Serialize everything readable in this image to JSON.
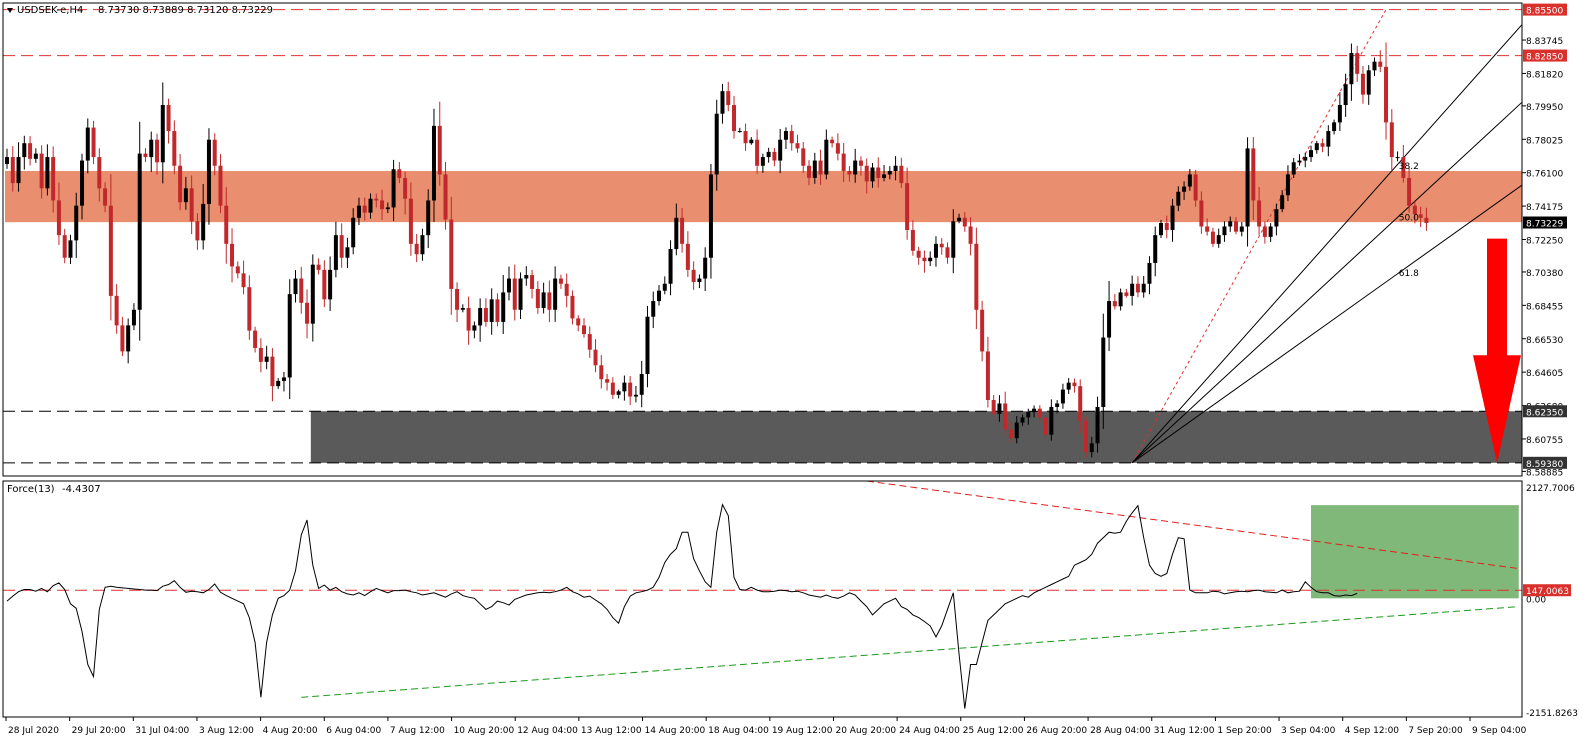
{
  "header": {
    "symbol": "USDSEK-e,H4",
    "ohlc": "8.73730 8.73889 8.73120 8.73229"
  },
  "indicator_header": {
    "name": "Force(13)",
    "value": "-4.4307"
  },
  "colors": {
    "bull": "#000000",
    "bear": "#c0282b",
    "resistance_zone": "#e98f70",
    "support_zone": "#5a5a5a",
    "force_zone": "#7fb878",
    "level_line": "#e03030",
    "arrow": "#ff0000"
  },
  "chart_data": [
    {
      "type": "candlestick",
      "title": "USDSEK-e,H4",
      "ylim": [
        8.5862,
        8.8588
      ],
      "y_ticks": [
        "8.83745",
        "8.81820",
        "8.79950",
        "8.78025",
        "8.76100",
        "8.74175",
        "8.72250",
        "8.70380",
        "8.68455",
        "8.66530",
        "8.64605",
        "8.62680",
        "8.60755",
        "8.58885"
      ],
      "price_labels": [
        {
          "label": "8.85500",
          "value": 8.855,
          "style": "red"
        },
        {
          "label": "8.82850",
          "value": 8.8285,
          "style": "red"
        },
        {
          "label": "8.73229",
          "value": 8.73229,
          "style": "current"
        },
        {
          "label": "8.62350",
          "value": 8.6235,
          "style": "dark"
        },
        {
          "label": "8.59380",
          "value": 8.5938,
          "style": "dark"
        }
      ],
      "horizontal_levels": [
        {
          "value": 8.855,
          "color": "red",
          "dash": true
        },
        {
          "value": 8.8285,
          "color": "red",
          "dash": true
        },
        {
          "value": 8.6235,
          "color": "black",
          "dash": true
        },
        {
          "value": 8.5938,
          "color": "black",
          "dash": true
        }
      ],
      "zones": [
        {
          "name": "resistance",
          "from": 8.7325,
          "to": 8.762,
          "start_candle": 0
        },
        {
          "name": "support",
          "from": 8.5938,
          "to": 8.6235,
          "start_candle": 53
        }
      ],
      "fibonacci": {
        "anchor_candle": 195,
        "anchor_price": 8.5938,
        "peak_candle": 239,
        "peak_price": 8.855,
        "levels": [
          {
            "label": "38.2",
            "value": 8.762,
            "candle": 240
          },
          {
            "label": "50.0",
            "value": 8.7322,
            "candle": 240
          },
          {
            "label": "61.8",
            "value": 8.7004,
            "candle": 240
          }
        ]
      },
      "arrow": {
        "direction": "down",
        "from": 8.723,
        "to": 8.5938
      },
      "x_labels": [
        "28 Jul 2020",
        "29 Jul 20:00",
        "31 Jul 04:00",
        "3 Aug 12:00",
        "4 Aug 20:00",
        "6 Aug 04:00",
        "7 Aug 12:00",
        "10 Aug 20:00",
        "12 Aug 04:00",
        "13 Aug 12:00",
        "14 Aug 20:00",
        "18 Aug 04:00",
        "19 Aug 12:00",
        "20 Aug 20:00",
        "24 Aug 04:00",
        "25 Aug 12:00",
        "26 Aug 20:00",
        "28 Aug 04:00",
        "31 Aug 12:00",
        "1 Sep 20:00",
        "3 Sep 04:00",
        "4 Sep 12:00",
        "7 Sep 20:00",
        "9 Sep 04:00"
      ],
      "closes": [
        8.77,
        8.755,
        8.77,
        8.778,
        8.769,
        8.772,
        8.752,
        8.77,
        8.745,
        8.725,
        8.712,
        8.722,
        8.742,
        8.768,
        8.787,
        8.77,
        8.752,
        8.742,
        8.69,
        8.673,
        8.658,
        8.673,
        8.682,
        8.772,
        8.77,
        8.78,
        8.767,
        8.8,
        8.785,
        8.765,
        8.744,
        8.752,
        8.733,
        8.722,
        8.743,
        8.78,
        8.765,
        8.742,
        8.72,
        8.707,
        8.703,
        8.695,
        8.67,
        8.66,
        8.652,
        8.655,
        8.638,
        8.641,
        8.643,
        8.691,
        8.7,
        8.686,
        8.674,
        8.708,
        8.705,
        8.688,
        8.705,
        8.725,
        8.712,
        8.718,
        8.735,
        8.742,
        8.738,
        8.746,
        8.745,
        8.74,
        8.741,
        8.763,
        8.758,
        8.746,
        8.72,
        8.714,
        8.725,
        8.745,
        8.788,
        8.76,
        8.734,
        8.694,
        8.682,
        8.683,
        8.67,
        8.673,
        8.683,
        8.675,
        8.688,
        8.675,
        8.692,
        8.7,
        8.682,
        8.7,
        8.702,
        8.694,
        8.683,
        8.692,
        8.682,
        8.7,
        8.697,
        8.69,
        8.677,
        8.673,
        8.668,
        8.659,
        8.65,
        8.642,
        8.64,
        8.633,
        8.635,
        8.64,
        8.632,
        8.633,
        8.645,
        8.678,
        8.687,
        8.693,
        8.697,
        8.717,
        8.735,
        8.72,
        8.705,
        8.698,
        8.7,
        8.712,
        8.76,
        8.795,
        8.808,
        8.8,
        8.785,
        8.785,
        8.778,
        8.78,
        8.765,
        8.77,
        8.773,
        8.768,
        8.78,
        8.785,
        8.778,
        8.775,
        8.765,
        8.758,
        8.768,
        8.76,
        8.78,
        8.778,
        8.772,
        8.762,
        8.76,
        8.768,
        8.765,
        8.756,
        8.764,
        8.758,
        8.76,
        8.762,
        8.765,
        8.755,
        8.728,
        8.716,
        8.712,
        8.71,
        8.712,
        8.72,
        8.718,
        8.712,
        8.733,
        8.735,
        8.73,
        8.72,
        8.682,
        8.658,
        8.63,
        8.622,
        8.628,
        8.613,
        8.608,
        8.617,
        8.62,
        8.623,
        8.625,
        8.62,
        8.61,
        8.626,
        8.628,
        8.636,
        8.64,
        8.638,
        8.618,
        8.6,
        8.605,
        8.626,
        8.666,
        8.687,
        8.684,
        8.692,
        8.69,
        8.697,
        8.692,
        8.697,
        8.709,
        8.725,
        8.732,
        8.728,
        8.742,
        8.75,
        8.753,
        8.76,
        8.745,
        8.73,
        8.727,
        8.72,
        8.725,
        8.73,
        8.733,
        8.727,
        8.73,
        8.775,
        8.745,
        8.73,
        8.724,
        8.73,
        8.74,
        8.748,
        8.76,
        8.767,
        8.768,
        8.77,
        8.774,
        8.778,
        8.776,
        8.785,
        8.79,
        8.8,
        8.812,
        8.83,
        8.818,
        8.806,
        8.82,
        8.825,
        8.822,
        8.79,
        8.77,
        8.77,
        8.758,
        8.742,
        8.737,
        8.735,
        8.732
      ]
    },
    {
      "type": "line",
      "title": "Force(13) -4.4307",
      "ylim": [
        -2151.8263,
        2127.7006
      ],
      "y_ticks": [
        "2127.7006",
        "0.00",
        "-2151.8263"
      ],
      "price_labels": [
        {
          "label": "147.0063",
          "value": 147.0063
        }
      ],
      "level": 147.0063,
      "trendlines": [
        {
          "color": "red",
          "from": {
            "candle": 149,
            "value": 2127
          },
          "to": {
            "candle": 262,
            "value": 540
          }
        },
        {
          "color": "green",
          "from": {
            "candle": 51,
            "value": -1795
          },
          "to": {
            "candle": 262,
            "value": -150
          }
        }
      ],
      "zone": {
        "start_candle": 226,
        "end_candle": 262,
        "from": 0.0,
        "to": 1690
      },
      "values": [
        -50,
        40,
        120,
        160,
        160,
        130,
        180,
        120,
        230,
        280,
        160,
        -100,
        -180,
        -600,
        -1200,
        -1420,
        -200,
        200,
        220,
        200,
        190,
        180,
        170,
        160,
        150,
        150,
        140,
        220,
        250,
        320,
        200,
        110,
        130,
        120,
        100,
        160,
        260,
        110,
        50,
        0,
        -50,
        -100,
        -350,
        -800,
        -1795,
        -800,
        -300,
        0,
        50,
        150,
        500,
        1150,
        1420,
        600,
        180,
        240,
        150,
        200,
        120,
        80,
        60,
        100,
        50,
        120,
        180,
        140,
        100,
        140,
        140,
        150,
        120,
        100,
        60,
        80,
        100,
        60,
        20,
        80,
        120,
        50,
        20,
        0,
        -100,
        -200,
        -150,
        -50,
        -80,
        -120,
        -20,
        20,
        60,
        80,
        100,
        110,
        100,
        120,
        150,
        200,
        120,
        80,
        20,
        40,
        -30,
        -100,
        -200,
        -350,
        -450,
        -150,
        40,
        100,
        120,
        150,
        200,
        380,
        650,
        800,
        900,
        1200,
        1200,
        720,
        500,
        300,
        200,
        1200,
        1700,
        1500,
        380,
        160,
        150,
        200,
        150,
        120,
        120,
        130,
        150,
        140,
        120,
        130,
        100,
        60,
        40,
        20,
        60,
        20,
        0,
        40,
        100,
        60,
        -50,
        -150,
        -300,
        -200,
        -100,
        -50,
        0,
        -150,
        -200,
        -300,
        -350,
        -420,
        -500,
        -700,
        -500,
        -200,
        100,
        -1000,
        -2000,
        -1200,
        -1200,
        -800,
        -400,
        -300,
        -200,
        -100,
        -50,
        0,
        50,
        20,
        100,
        150,
        200,
        250,
        300,
        350,
        400,
        600,
        650,
        700,
        800,
        1000,
        1100,
        1200,
        1180,
        1200,
        1400,
        1550,
        1680,
        1100,
        600,
        450,
        400,
        450,
        800,
        1100,
        1080,
        150,
        100,
        100,
        100,
        130,
        120,
        80,
        100,
        120,
        130,
        120,
        140,
        150,
        120,
        110,
        100,
        150,
        100,
        120,
        130,
        300,
        200,
        120,
        100,
        100,
        50,
        40,
        60,
        50,
        90
      ]
    }
  ]
}
